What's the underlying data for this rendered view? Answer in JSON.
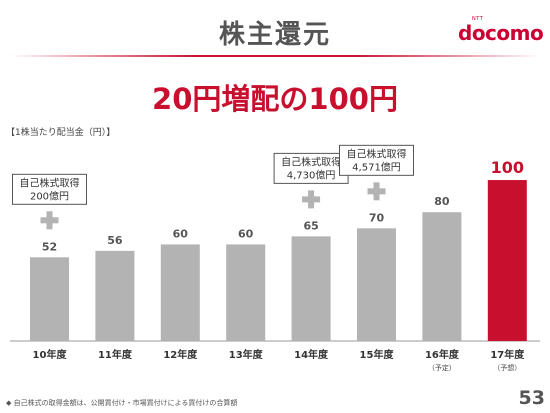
{
  "slide": {
    "title": "株主還元",
    "headline": "20円増配の100円",
    "ylabel": "【1株当たり配当金（円）】",
    "note": "◆ 自己株式の取得金額は、公開買付け・市場買付けによる買付けの合算額",
    "page_number": "53"
  },
  "logo": {
    "ntt": "NTT",
    "brand": "docomo"
  },
  "chart_data": {
    "type": "bar",
    "categories": [
      "10年度",
      "11年度",
      "12年度",
      "13年度",
      "14年度",
      "15年度",
      "16年度",
      "17年度"
    ],
    "sublabels": [
      "",
      "",
      "",
      "",
      "",
      "",
      "（予定）",
      "（予想）"
    ],
    "values": [
      52,
      56,
      60,
      60,
      65,
      70,
      80,
      100
    ],
    "highlight_index": 7,
    "colors": {
      "bar": "#b3b3b3",
      "highlight": "#c8102e",
      "label": "#555555",
      "highlight_label": "#c8102e",
      "plus": "#b3b3b3"
    },
    "ylim": [
      0,
      105
    ],
    "buybacks": [
      {
        "category_index": 0,
        "line1": "自己株式取得",
        "line2": "200億円"
      },
      {
        "category_index": 4,
        "line1": "自己株式取得",
        "line2": "4,730億円"
      },
      {
        "category_index": 5,
        "line1": "自己株式取得",
        "line2": "4,571億円"
      }
    ]
  }
}
